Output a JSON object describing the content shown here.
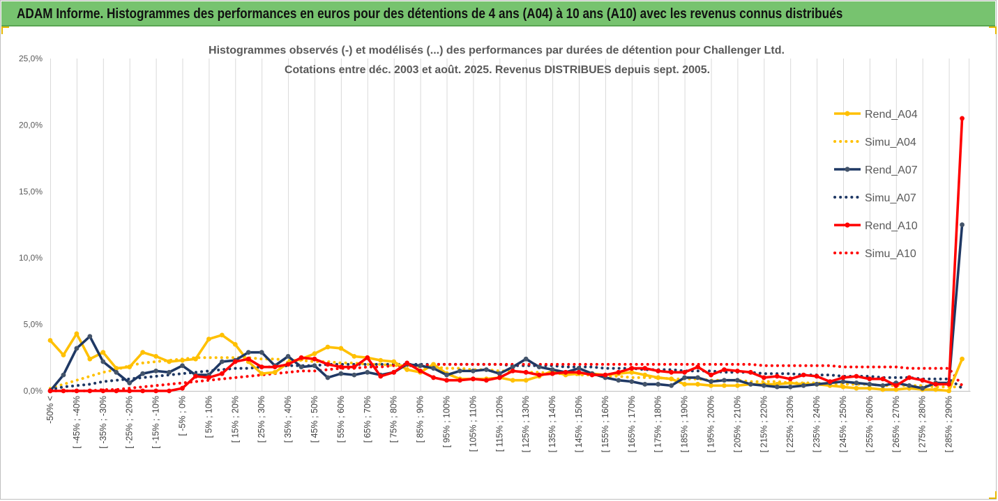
{
  "banner": {
    "title": "ADAM Informe. Histogrammes des performances en euros pour des détentions de 4 ans (A04) à 10 ans (A10) avec les revenus connus distribués",
    "color": "#77c36f"
  },
  "chart_data": {
    "type": "line",
    "title": "Histogrammes observés (-) et modélisés (...) des performances par durées de détention pour Challenger Ltd.",
    "subtitle": "Cotations entre déc. 2003 et août. 2025. Revenus DISTRIBUES depuis sept. 2005.",
    "xlabel": "",
    "ylabel": "",
    "ylim": [
      0,
      25
    ],
    "y_ticks": [
      "0,0%",
      "5,0%",
      "10,0%",
      "15,0%",
      "20,0%",
      "25,0%"
    ],
    "grid": "vertical",
    "legend_position": "right",
    "x_tick_labels": [
      "-50% <",
      "[ -45% ; -40%",
      "[ -35% ; -30%",
      "[ -25% ; -20%",
      "[ -15% ; -10%",
      "[ -5% ; 0%",
      "[ 5% ; 10%",
      "[ 15% ; 20%",
      "[ 25% ; 30%",
      "[ 35% ; 40%",
      "[ 45% ; 50%",
      "[ 55% ; 60%",
      "[ 65% ; 70%",
      "[ 75% ; 80%",
      "[ 85% ; 90%",
      "[ 95% ; 100%",
      "[ 105% ; 110%",
      "[ 115% ; 120%",
      "[ 125% ; 130%",
      "[ 135% ; 140%",
      "[ 145% ; 150%",
      "[ 155% ; 160%",
      "[ 165% ; 170%",
      "[ 175% ; 180%",
      "[ 185% ; 190%",
      "[ 195% ; 200%",
      "[ 205% ; 210%",
      "[ 215% ; 220%",
      "[ 225% ; 230%",
      "[ 235% ; 240%",
      "[ 245% ; 250%",
      "[ 255% ; 260%",
      "[ 265% ; 270%",
      "[ 275% ; 280%",
      "[ 285% ; 290%"
    ],
    "x_count": 70,
    "series": [
      {
        "name": "Rend_A04",
        "style": "solid",
        "color": "#ffc000",
        "values": [
          3.8,
          2.7,
          4.3,
          2.4,
          2.9,
          1.7,
          1.8,
          2.9,
          2.6,
          2.2,
          2.3,
          2.4,
          3.9,
          4.2,
          3.5,
          2.2,
          1.3,
          1.4,
          2.1,
          2.4,
          2.8,
          3.3,
          3.2,
          2.6,
          2.5,
          2.3,
          2.2,
          1.6,
          1.4,
          2.0,
          1.3,
          0.9,
          0.9,
          0.9,
          1.0,
          0.8,
          0.8,
          1.1,
          1.5,
          1.2,
          1.3,
          1.3,
          1.2,
          1.3,
          1.4,
          1.2,
          1.0,
          0.9,
          0.5,
          0.5,
          0.4,
          0.4,
          0.4,
          0.5,
          0.5,
          0.5,
          0.6,
          0.5,
          0.5,
          0.4,
          0.3,
          0.2,
          0.2,
          0.1,
          0.1,
          0.2,
          0.1,
          0.1,
          0.0,
          2.4
        ]
      },
      {
        "name": "Simu_A04",
        "style": "dotted",
        "color": "#ffc000",
        "values": [
          0.2,
          0.5,
          0.8,
          1.1,
          1.4,
          1.6,
          1.9,
          2.1,
          2.2,
          2.3,
          2.4,
          2.5,
          2.5,
          2.5,
          2.5,
          2.5,
          2.4,
          2.4,
          2.3,
          2.3,
          2.2,
          2.2,
          2.1,
          2.1,
          2.0,
          2.0,
          1.9,
          1.9,
          1.8,
          1.8,
          1.7,
          1.7,
          1.6,
          1.6,
          1.5,
          1.5,
          1.4,
          1.4,
          1.3,
          1.3,
          1.2,
          1.2,
          1.1,
          1.1,
          1.0,
          1.0,
          1.0,
          0.9,
          0.9,
          0.9,
          0.8,
          0.8,
          0.8,
          0.7,
          0.7,
          0.7,
          0.6,
          0.6,
          0.6,
          0.5,
          0.5,
          0.5,
          0.5,
          0.4,
          0.4,
          0.4,
          0.4,
          0.3,
          0.3,
          0.3
        ]
      },
      {
        "name": "Rend_A07",
        "style": "solid",
        "color": "#1f3864",
        "values": [
          0.0,
          1.2,
          3.2,
          4.1,
          2.2,
          1.4,
          0.6,
          1.3,
          1.5,
          1.4,
          1.9,
          1.2,
          1.2,
          2.2,
          2.3,
          2.9,
          2.9,
          1.9,
          2.6,
          1.8,
          1.9,
          1.0,
          1.3,
          1.2,
          1.4,
          1.2,
          1.4,
          2.0,
          1.9,
          1.7,
          1.2,
          1.5,
          1.5,
          1.6,
          1.3,
          1.8,
          2.4,
          1.8,
          1.6,
          1.4,
          1.7,
          1.3,
          1.0,
          0.8,
          0.7,
          0.5,
          0.5,
          0.4,
          1.0,
          1.0,
          0.7,
          0.8,
          0.8,
          0.5,
          0.4,
          0.3,
          0.3,
          0.4,
          0.5,
          0.6,
          0.7,
          0.6,
          0.5,
          0.4,
          0.6,
          0.4,
          0.2,
          0.6,
          0.6,
          12.5
        ]
      },
      {
        "name": "Simu_A07",
        "style": "dotted",
        "color": "#1f3864",
        "values": [
          0.1,
          0.3,
          0.4,
          0.5,
          0.7,
          0.8,
          0.9,
          1.0,
          1.1,
          1.2,
          1.3,
          1.4,
          1.5,
          1.6,
          1.7,
          1.7,
          1.8,
          1.8,
          1.9,
          1.9,
          1.9,
          2.0,
          2.0,
          2.0,
          2.0,
          2.0,
          2.0,
          2.0,
          2.0,
          2.0,
          2.0,
          2.0,
          2.0,
          2.0,
          2.0,
          1.9,
          1.9,
          1.9,
          1.9,
          1.8,
          1.8,
          1.8,
          1.7,
          1.7,
          1.7,
          1.6,
          1.6,
          1.6,
          1.5,
          1.5,
          1.5,
          1.4,
          1.4,
          1.4,
          1.3,
          1.3,
          1.3,
          1.2,
          1.2,
          1.2,
          1.1,
          1.1,
          1.1,
          1.0,
          1.0,
          1.0,
          0.9,
          0.9,
          0.9,
          0.2
        ]
      },
      {
        "name": "Rend_A10",
        "style": "solid",
        "color": "#ff0000",
        "values": [
          0.0,
          0.0,
          0.0,
          0.0,
          0.0,
          0.0,
          0.0,
          0.0,
          0.0,
          0.0,
          0.2,
          1.1,
          1.0,
          1.3,
          2.2,
          2.4,
          1.8,
          1.8,
          2.0,
          2.5,
          2.4,
          2.0,
          1.8,
          1.8,
          2.5,
          1.1,
          1.4,
          2.1,
          1.5,
          1.0,
          0.8,
          0.8,
          0.9,
          0.8,
          1.0,
          1.5,
          1.4,
          1.2,
          1.3,
          1.4,
          1.4,
          1.2,
          1.2,
          1.4,
          1.7,
          1.7,
          1.5,
          1.4,
          1.4,
          1.8,
          1.2,
          1.6,
          1.5,
          1.4,
          1.0,
          1.1,
          0.9,
          1.2,
          1.1,
          0.7,
          1.0,
          1.1,
          0.9,
          0.9,
          0.4,
          1.0,
          0.8,
          0.5,
          0.5,
          20.5
        ]
      },
      {
        "name": "Simu_A10",
        "style": "dotted",
        "color": "#ff0000",
        "values": [
          0.0,
          0.0,
          0.0,
          0.0,
          0.1,
          0.1,
          0.2,
          0.3,
          0.4,
          0.5,
          0.6,
          0.7,
          0.8,
          0.9,
          1.0,
          1.1,
          1.2,
          1.3,
          1.4,
          1.5,
          1.5,
          1.6,
          1.7,
          1.7,
          1.8,
          1.8,
          1.9,
          1.9,
          1.9,
          2.0,
          2.0,
          2.0,
          2.0,
          2.0,
          2.0,
          2.0,
          2.0,
          2.0,
          2.0,
          2.0,
          2.0,
          2.0,
          2.0,
          2.0,
          2.0,
          2.0,
          2.0,
          2.0,
          2.0,
          2.0,
          2.0,
          2.0,
          2.0,
          2.0,
          1.9,
          1.9,
          1.9,
          1.9,
          1.9,
          1.9,
          1.8,
          1.8,
          1.8,
          1.8,
          1.8,
          1.7,
          1.7,
          1.7,
          1.7,
          0.4
        ]
      }
    ]
  }
}
